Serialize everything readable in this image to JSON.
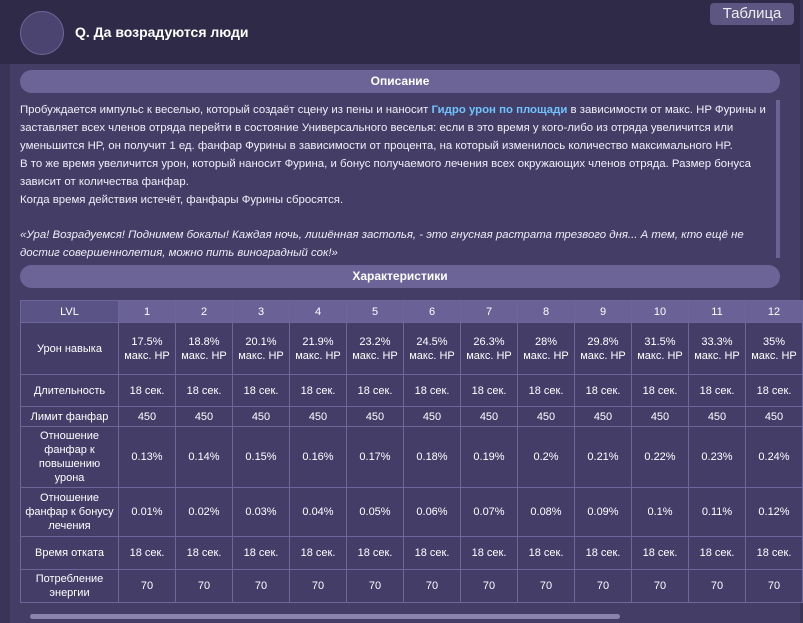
{
  "header": {
    "title": "Q. Да возрадуются люди",
    "tab": "Таблица"
  },
  "description": {
    "heading": "Описание",
    "p1": [
      "Пробуждается импульс к веселью, который создаёт сцену из пены и наносит ",
      "Гидро урон по площади",
      " в зависимости от макс. HP Фурины и заставляет всех членов отряда перейти в состояние Универсального веселья: если в это время у кого-либо из отряда увеличится или уменьшится HP, он получит 1 ед. фанфар Фурины в зависимости от процента, на который изменилось количество максимального HP."
    ],
    "p2": "В то же время увеличится урон, который наносит Фурина, и бонус получаемого лечения всех окружающих членов отряда. Размер бонуса зависит от количества фанфар.",
    "p3": "Когда время действия истечёт, фанфары Фурины сбросятся.",
    "quote": "«Ура! Возрадуемся! Поднимем бокалы! Каждая ночь, лишённая застолья, - это гнусная растрата трезвого дня... А тем, кто ещё не достиг совершеннолетия, можно пить виноградный сок!»"
  },
  "stats": {
    "heading": "Характеристики",
    "columns": [
      "LVL",
      "1",
      "2",
      "3",
      "4",
      "5",
      "6",
      "7",
      "8",
      "9",
      "10",
      "11",
      "12"
    ],
    "rows": [
      [
        "Урон навыка",
        "17.5% макс. HP",
        "18.8% макс. HP",
        "20.1% макс. HP",
        "21.9% макс. HP",
        "23.2% макс. HP",
        "24.5% макс. HP",
        "26.3% макс. HP",
        "28% макс. HP",
        "29.8% макс. HP",
        "31.5% макс. HP",
        "33.3% макс. HP",
        "35% макс. HP"
      ],
      [
        "Длительность",
        "18 сек.",
        "18 сек.",
        "18 сек.",
        "18 сек.",
        "18 сек.",
        "18 сек.",
        "18 сек.",
        "18 сек.",
        "18 сек.",
        "18 сек.",
        "18 сек.",
        "18 сек."
      ],
      [
        "Лимит фанфар",
        "450",
        "450",
        "450",
        "450",
        "450",
        "450",
        "450",
        "450",
        "450",
        "450",
        "450",
        "450"
      ],
      [
        "Отношение фанфар к повышению урона",
        "0.13%",
        "0.14%",
        "0.15%",
        "0.16%",
        "0.17%",
        "0.18%",
        "0.19%",
        "0.2%",
        "0.21%",
        "0.22%",
        "0.23%",
        "0.24%"
      ],
      [
        "Отношение фанфар к бонусу лечения",
        "0.01%",
        "0.02%",
        "0.03%",
        "0.04%",
        "0.05%",
        "0.06%",
        "0.07%",
        "0.08%",
        "0.09%",
        "0.1%",
        "0.11%",
        "0.12%"
      ],
      [
        "Время отката",
        "18 сек.",
        "18 сек.",
        "18 сек.",
        "18 сек.",
        "18 сек.",
        "18 сек.",
        "18 сек.",
        "18 сек.",
        "18 сек.",
        "18 сек.",
        "18 сек.",
        "18 сек."
      ],
      [
        "Потребление энергии",
        "70",
        "70",
        "70",
        "70",
        "70",
        "70",
        "70",
        "70",
        "70",
        "70",
        "70",
        "70"
      ]
    ]
  }
}
